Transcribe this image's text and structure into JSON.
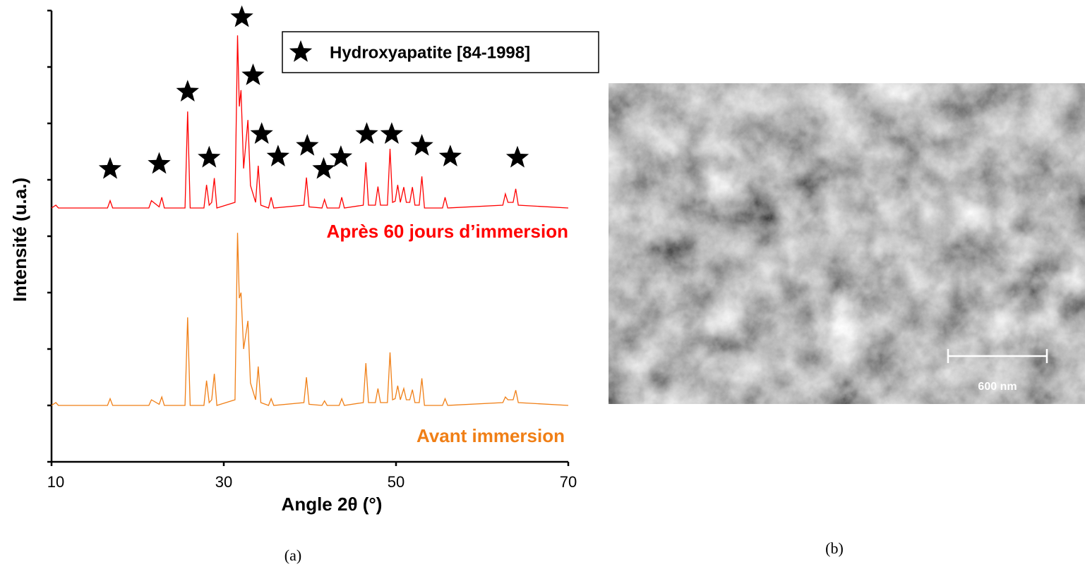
{
  "chart_data": {
    "type": "line",
    "xlabel": "Angle 2θ (°)",
    "ylabel": "Intensité (u.a.)",
    "xlim": [
      10,
      70
    ],
    "xticks": [
      10,
      30,
      50,
      70
    ],
    "ylim": [
      0,
      8
    ],
    "yticks": [
      0,
      1,
      2,
      3,
      4,
      5,
      6,
      7,
      8
    ],
    "legend": "upper right",
    "series": [
      {
        "name": "Après 60 jours d’immersion",
        "type": "line",
        "color": "#ff0000",
        "x": [
          10,
          10.5,
          10.8,
          16.5,
          16.8,
          17.1,
          21.3,
          21.6,
          22.5,
          22.8,
          23.1,
          25.5,
          25.8,
          26.1,
          27.7,
          28.0,
          28.3,
          28.6,
          28.9,
          29.2,
          31.3,
          31.6,
          31.8,
          32.0,
          32.3,
          32.8,
          33.1,
          33.7,
          34.0,
          34.3,
          35.2,
          35.5,
          35.8,
          39.3,
          39.6,
          39.9,
          41.4,
          41.7,
          42.0,
          43.4,
          43.7,
          44.0,
          46.2,
          46.5,
          46.8,
          47.6,
          47.9,
          48.2,
          49.0,
          49.3,
          49.6,
          49.9,
          50.2,
          50.5,
          50.9,
          51.2,
          51.6,
          51.9,
          52.2,
          52.7,
          53.0,
          53.3,
          55.4,
          55.7,
          56.0,
          62.4,
          62.7,
          63.0,
          63.6,
          63.9,
          64.2,
          70
        ],
        "values": [
          4.5,
          4.55,
          4.5,
          4.5,
          4.63,
          4.5,
          4.5,
          4.63,
          4.52,
          4.69,
          4.5,
          4.5,
          6.21,
          4.5,
          4.5,
          4.91,
          4.55,
          4.6,
          5.03,
          4.5,
          4.6,
          7.56,
          6.3,
          6.59,
          5.2,
          6.06,
          4.9,
          4.6,
          5.25,
          4.55,
          4.5,
          4.69,
          4.5,
          4.55,
          5.04,
          4.52,
          4.5,
          4.65,
          4.5,
          4.5,
          4.69,
          4.5,
          4.55,
          5.31,
          4.55,
          4.55,
          4.88,
          4.55,
          4.55,
          5.55,
          4.6,
          4.62,
          4.91,
          4.6,
          4.87,
          4.6,
          4.6,
          4.87,
          4.55,
          4.55,
          5.06,
          4.5,
          4.5,
          4.69,
          4.5,
          4.55,
          4.75,
          4.6,
          4.6,
          4.84,
          4.55,
          4.5
        ]
      },
      {
        "name": "Avant immersion",
        "type": "line",
        "color": "#f07f16",
        "x": [
          10,
          10.5,
          10.8,
          16.5,
          16.8,
          17.1,
          21.3,
          21.6,
          22.5,
          22.8,
          23.1,
          25.5,
          25.8,
          26.1,
          27.7,
          28.0,
          28.3,
          28.6,
          28.9,
          29.2,
          31.3,
          31.6,
          31.8,
          32.0,
          32.3,
          32.8,
          33.1,
          33.7,
          34.0,
          34.3,
          35.2,
          35.5,
          35.8,
          39.3,
          39.6,
          39.9,
          41.4,
          41.7,
          42.0,
          43.4,
          43.7,
          44.0,
          46.2,
          46.5,
          46.8,
          47.6,
          47.9,
          48.2,
          49.0,
          49.3,
          49.6,
          49.9,
          50.2,
          50.5,
          50.9,
          51.2,
          51.6,
          51.9,
          52.2,
          52.7,
          53.0,
          53.3,
          55.4,
          55.7,
          56.0,
          62.4,
          62.7,
          63.0,
          63.6,
          63.9,
          64.2,
          70
        ],
        "values": [
          1.0,
          1.05,
          1.0,
          1.0,
          1.12,
          1.0,
          1.0,
          1.1,
          1.02,
          1.15,
          1.0,
          1.0,
          2.56,
          1.0,
          1.0,
          1.44,
          1.05,
          1.1,
          1.56,
          1.0,
          1.1,
          4.06,
          2.9,
          3.0,
          2.0,
          2.5,
          1.4,
          1.1,
          1.69,
          1.05,
          1.0,
          1.12,
          1.0,
          1.05,
          1.5,
          1.02,
          1.0,
          1.08,
          1.0,
          1.0,
          1.12,
          1.0,
          1.05,
          1.75,
          1.05,
          1.05,
          1.3,
          1.05,
          1.05,
          1.94,
          1.1,
          1.12,
          1.35,
          1.1,
          1.3,
          1.1,
          1.1,
          1.28,
          1.05,
          1.05,
          1.48,
          1.0,
          1.0,
          1.12,
          1.0,
          1.05,
          1.15,
          1.1,
          1.1,
          1.27,
          1.05,
          1.0
        ]
      },
      {
        "name": "Hydroxyapatite [84-1998]",
        "type": "star",
        "color": "#000000",
        "x": [
          16.8,
          22.5,
          25.8,
          28.3,
          32.1,
          33.4,
          34.4,
          36.3,
          39.7,
          41.6,
          43.6,
          46.6,
          49.5,
          53.0,
          56.3,
          64.1
        ],
        "values": [
          5.19,
          5.28,
          6.56,
          5.39,
          7.88,
          6.85,
          5.81,
          5.41,
          5.6,
          5.19,
          5.4,
          5.81,
          5.81,
          5.6,
          5.41,
          5.39
        ]
      }
    ]
  },
  "figure": {
    "panel_a": "(a)",
    "panel_b": "(b)",
    "scale_bar": "600 nm"
  }
}
